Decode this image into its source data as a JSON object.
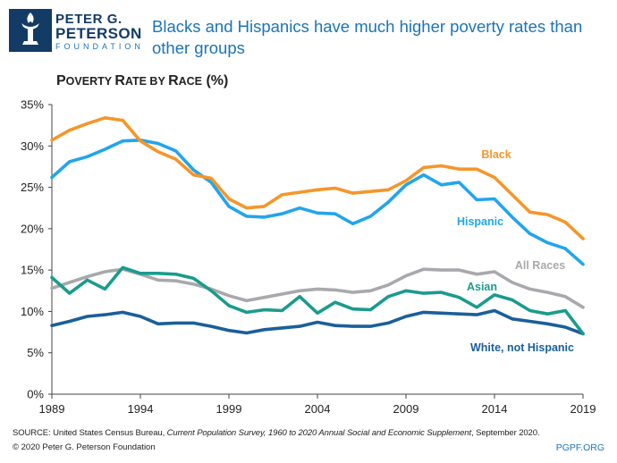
{
  "brand": {
    "line1": "PETER G.",
    "line2": "PETERSON",
    "line3": "FOUNDATION",
    "colors": {
      "navy": "#123b66",
      "blue": "#1b74b8"
    }
  },
  "headline": "Blacks and Hispanics have much higher poverty rates than other groups",
  "subtitle": {
    "p_cap": "P",
    "w1": "OVERTY ",
    "r_cap": "R",
    "w2": "ATE BY ",
    "r2_cap": "R",
    "w3": "ACE",
    "tail": " (%)"
  },
  "chart_data": {
    "type": "line",
    "title": "Poverty Rate by Race (%)",
    "x_start": 1989,
    "x_end": 2019,
    "x_ticks": [
      1989,
      1994,
      1999,
      2004,
      2009,
      2014,
      2019
    ],
    "ylim": [
      0,
      35
    ],
    "y_ticks": [
      0,
      5,
      10,
      15,
      20,
      25,
      30,
      35
    ],
    "y_tick_labels": [
      "0%",
      "5%",
      "10%",
      "15%",
      "20%",
      "25%",
      "30%",
      "35%"
    ],
    "gridlines": false,
    "series": [
      {
        "name": "Black",
        "key": "black",
        "color": "#f5962a",
        "values": [
          30.7,
          31.9,
          32.7,
          33.4,
          33.1,
          30.6,
          29.3,
          28.4,
          26.5,
          26.1,
          23.6,
          22.5,
          22.7,
          24.1,
          24.4,
          24.7,
          24.9,
          24.3,
          24.5,
          24.7,
          25.8,
          27.4,
          27.6,
          27.2,
          27.2,
          26.2,
          24.1,
          22.0,
          21.7,
          20.8,
          18.8
        ]
      },
      {
        "name": "Hispanic",
        "key": "hispanic",
        "color": "#22a5ec",
        "values": [
          26.2,
          28.1,
          28.7,
          29.6,
          30.6,
          30.7,
          30.3,
          29.4,
          27.1,
          25.6,
          22.7,
          21.5,
          21.4,
          21.8,
          22.5,
          21.9,
          21.8,
          20.6,
          21.5,
          23.2,
          25.3,
          26.5,
          25.3,
          25.6,
          23.5,
          23.6,
          21.4,
          19.4,
          18.3,
          17.6,
          15.7
        ]
      },
      {
        "name": "All Races",
        "key": "all",
        "color": "#a7a9ac",
        "values": [
          12.8,
          13.5,
          14.2,
          14.8,
          15.1,
          14.5,
          13.8,
          13.7,
          13.3,
          12.7,
          11.9,
          11.3,
          11.7,
          12.1,
          12.5,
          12.7,
          12.6,
          12.3,
          12.5,
          13.2,
          14.3,
          15.1,
          15.0,
          15.0,
          14.5,
          14.8,
          13.5,
          12.7,
          12.3,
          11.8,
          10.5
        ]
      },
      {
        "name": "Asian",
        "key": "asian",
        "color": "#1a9b8d",
        "values": [
          14.1,
          12.2,
          13.8,
          12.7,
          15.3,
          14.6,
          14.6,
          14.5,
          14.0,
          12.5,
          10.7,
          9.9,
          10.2,
          10.1,
          11.8,
          9.8,
          11.1,
          10.3,
          10.2,
          11.8,
          12.5,
          12.2,
          12.3,
          11.7,
          10.5,
          12.0,
          11.4,
          10.1,
          9.7,
          10.1,
          7.3
        ]
      },
      {
        "name": "White, not Hispanic",
        "key": "white",
        "color": "#1a5f9a",
        "values": [
          8.3,
          8.8,
          9.4,
          9.6,
          9.9,
          9.4,
          8.5,
          8.6,
          8.6,
          8.2,
          7.7,
          7.4,
          7.8,
          8.0,
          8.2,
          8.7,
          8.3,
          8.2,
          8.2,
          8.6,
          9.4,
          9.9,
          9.8,
          9.7,
          9.6,
          10.1,
          9.1,
          8.8,
          8.5,
          8.1,
          7.3
        ]
      }
    ]
  },
  "labels": {
    "black": "Black",
    "hispanic": "Hispanic",
    "all": "All Races",
    "asian": "Asian",
    "white": "White, not Hispanic"
  },
  "source": {
    "lead": "SOURCE: United States Census Bureau, ",
    "title": "Current Population Survey, 1960 to 2020 Annual Social and Economic Supplement",
    "tail": ", September 2020."
  },
  "copyright": "© 2020 Peter G. Peterson Foundation",
  "site": "PGPF.ORG"
}
